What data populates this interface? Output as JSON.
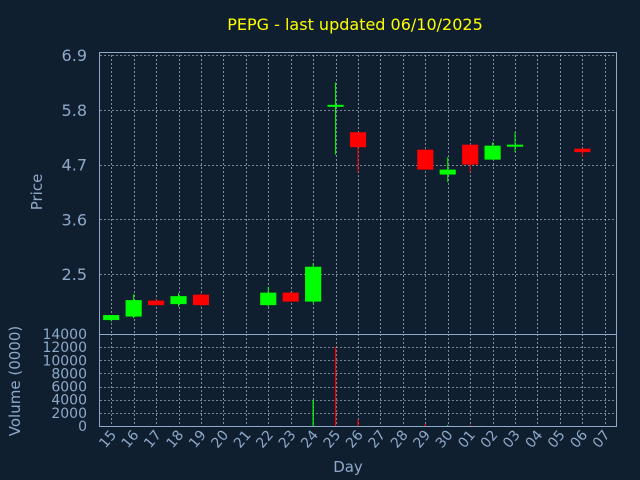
{
  "chart_data": {
    "type": "candlestick",
    "title": "PEPG - last updated 06/10/2025",
    "xlabel": "Day",
    "price_panel": {
      "ylabel": "Price",
      "ylim": [
        1.3,
        6.9
      ],
      "yticks": [
        "6.9",
        "5.8",
        "4.7",
        "3.6",
        "2.5"
      ],
      "ytick_values": [
        6.9,
        5.8,
        4.7,
        3.6,
        2.5
      ],
      "grid": true
    },
    "volume_panel": {
      "ylabel": "Volume (0000)",
      "ylim": [
        0,
        14000
      ],
      "yticks": [
        "14000",
        "12000",
        "10000",
        "8000",
        "6000",
        "4000",
        "2000",
        "0"
      ],
      "ytick_values": [
        14000,
        12000,
        10000,
        8000,
        6000,
        4000,
        2000,
        0
      ],
      "grid": true
    },
    "up_color": "#00ff00",
    "down_color": "#ff0000",
    "categories": [
      "15",
      "16",
      "17",
      "18",
      "19",
      "20",
      "21",
      "22",
      "23",
      "24",
      "25",
      "26",
      "27",
      "28",
      "29",
      "30",
      "01",
      "02",
      "03",
      "04",
      "05",
      "06",
      "07"
    ],
    "candles": [
      {
        "x": "15",
        "open": 1.58,
        "high": 1.68,
        "low": 1.55,
        "close": 1.68
      },
      {
        "x": "16",
        "open": 1.65,
        "high": 2.1,
        "low": 1.62,
        "close": 1.98
      },
      {
        "x": "17",
        "open": 1.97,
        "high": 2.0,
        "low": 1.87,
        "close": 1.88
      },
      {
        "x": "18",
        "open": 1.9,
        "high": 2.12,
        "low": 1.85,
        "close": 2.06
      },
      {
        "x": "19",
        "open": 2.09,
        "high": 2.12,
        "low": 1.85,
        "close": 1.88
      },
      {
        "x": "22",
        "open": 1.88,
        "high": 2.25,
        "low": 1.85,
        "close": 2.13
      },
      {
        "x": "23",
        "open": 2.13,
        "high": 2.15,
        "low": 1.96,
        "close": 1.95
      },
      {
        "x": "24",
        "open": 1.95,
        "high": 2.72,
        "low": 1.92,
        "close": 2.65
      },
      {
        "x": "25",
        "open": 5.9,
        "high": 6.35,
        "low": 4.9,
        "close": 5.9
      },
      {
        "x": "26",
        "open": 5.35,
        "high": 5.35,
        "low": 4.55,
        "close": 5.05
      },
      {
        "x": "29",
        "open": 5.0,
        "high": 5.0,
        "low": 4.6,
        "close": 4.6
      },
      {
        "x": "30",
        "open": 4.5,
        "high": 4.85,
        "low": 4.35,
        "close": 4.6
      },
      {
        "x": "01",
        "open": 5.1,
        "high": 5.1,
        "low": 4.55,
        "close": 4.7
      },
      {
        "x": "02",
        "open": 4.8,
        "high": 5.15,
        "low": 4.8,
        "close": 5.08
      },
      {
        "x": "03",
        "open": 5.1,
        "high": 5.35,
        "low": 4.95,
        "close": 5.1
      },
      {
        "x": "06",
        "open": 5.02,
        "high": 5.02,
        "low": 4.85,
        "close": 4.95
      }
    ],
    "volume": [
      {
        "x": "24",
        "value": 4000,
        "direction": "up"
      },
      {
        "x": "25",
        "value": 12000,
        "direction": "down"
      },
      {
        "x": "26",
        "value": 1000,
        "direction": "down"
      },
      {
        "x": "29",
        "value": 300,
        "direction": "down"
      },
      {
        "x": "30",
        "value": 150,
        "direction": "up"
      },
      {
        "x": "01",
        "value": 150,
        "direction": "down"
      }
    ]
  }
}
